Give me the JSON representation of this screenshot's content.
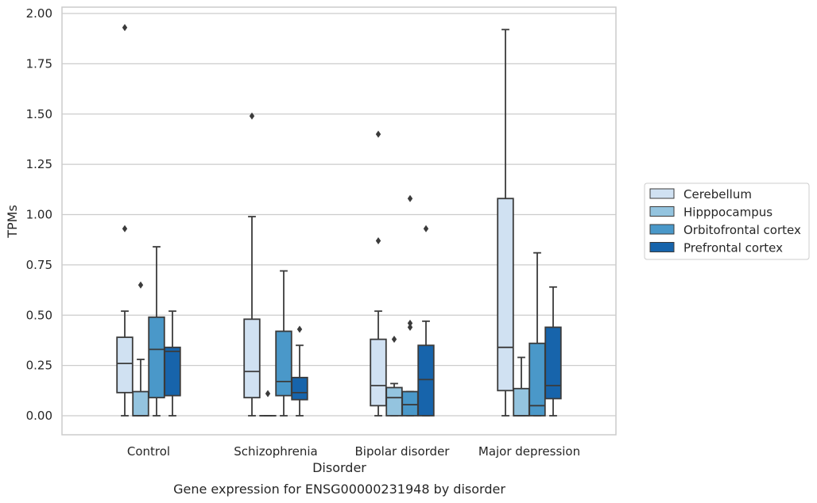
{
  "chart_data": {
    "type": "box",
    "title": "Gene expression for ENSG00000231948 by disorder",
    "xlabel": "Disorder",
    "ylabel": "TPMs",
    "ylim": [
      -0.09,
      2.03
    ],
    "yticks": [
      "0.00",
      "0.25",
      "0.50",
      "0.75",
      "1.00",
      "1.25",
      "1.50",
      "1.75",
      "2.00"
    ],
    "ytick_values": [
      0,
      0.25,
      0.5,
      0.75,
      1.0,
      1.25,
      1.5,
      1.75,
      2.0
    ],
    "grid": "horizontal",
    "legend_position": "right",
    "categories": [
      "Control",
      "Schizophrenia",
      "Bipolar disorder",
      "Major depression"
    ],
    "series": [
      {
        "name": "Cerebellum",
        "color": "#d0e1f2",
        "boxes": [
          {
            "whislo": 0,
            "q1": 0.115,
            "med": 0.26,
            "q3": 0.39,
            "whishi": 0.52,
            "fliers": [
              0.93,
              1.93
            ]
          },
          {
            "whislo": 0,
            "q1": 0.09,
            "med": 0.22,
            "q3": 0.48,
            "whishi": 0.99,
            "fliers": [
              1.49
            ]
          },
          {
            "whislo": 0,
            "q1": 0.05,
            "med": 0.15,
            "q3": 0.38,
            "whishi": 0.52,
            "fliers": [
              0.87,
              1.4
            ]
          },
          {
            "whislo": 0,
            "q1": 0.125,
            "med": 0.34,
            "q3": 1.08,
            "whishi": 1.92,
            "fliers": []
          }
        ]
      },
      {
        "name": "Hipppocampus",
        "color": "#94c4df",
        "boxes": [
          {
            "whislo": 0,
            "q1": 0,
            "med": 0,
            "q3": 0.12,
            "whishi": 0.28,
            "fliers": [
              0.65
            ]
          },
          {
            "whislo": 0,
            "q1": 0,
            "med": 0,
            "q3": 0,
            "whishi": 0,
            "fliers": [
              0.11
            ]
          },
          {
            "whislo": 0,
            "q1": 0,
            "med": 0.09,
            "q3": 0.14,
            "whishi": 0.16,
            "fliers": [
              0.38
            ]
          },
          {
            "whislo": 0,
            "q1": 0,
            "med": 0,
            "q3": 0.135,
            "whishi": 0.29,
            "fliers": []
          }
        ]
      },
      {
        "name": "Orbitofrontal cortex",
        "color": "#4a98c9",
        "boxes": [
          {
            "whislo": 0,
            "q1": 0.09,
            "med": 0.33,
            "q3": 0.49,
            "whishi": 0.84,
            "fliers": []
          },
          {
            "whislo": 0,
            "q1": 0.1,
            "med": 0.17,
            "q3": 0.42,
            "whishi": 0.72,
            "fliers": []
          },
          {
            "whislo": 0,
            "q1": 0,
            "med": 0.055,
            "q3": 0.12,
            "whishi": 0.12,
            "fliers": [
              0.44,
              0.46,
              1.08
            ]
          },
          {
            "whislo": 0,
            "q1": 0,
            "med": 0.05,
            "q3": 0.36,
            "whishi": 0.81,
            "fliers": []
          }
        ]
      },
      {
        "name": "Prefrontal cortex",
        "color": "#1764ab",
        "boxes": [
          {
            "whislo": 0,
            "q1": 0.1,
            "med": 0.32,
            "q3": 0.34,
            "whishi": 0.52,
            "fliers": []
          },
          {
            "whislo": 0,
            "q1": 0.08,
            "med": 0.115,
            "q3": 0.19,
            "whishi": 0.35,
            "fliers": [
              0.43
            ]
          },
          {
            "whislo": 0,
            "q1": 0,
            "med": 0.18,
            "q3": 0.35,
            "whishi": 0.47,
            "fliers": [
              0.93
            ]
          },
          {
            "whislo": 0,
            "q1": 0.085,
            "med": 0.15,
            "q3": 0.44,
            "whishi": 0.64,
            "fliers": []
          }
        ]
      }
    ]
  }
}
